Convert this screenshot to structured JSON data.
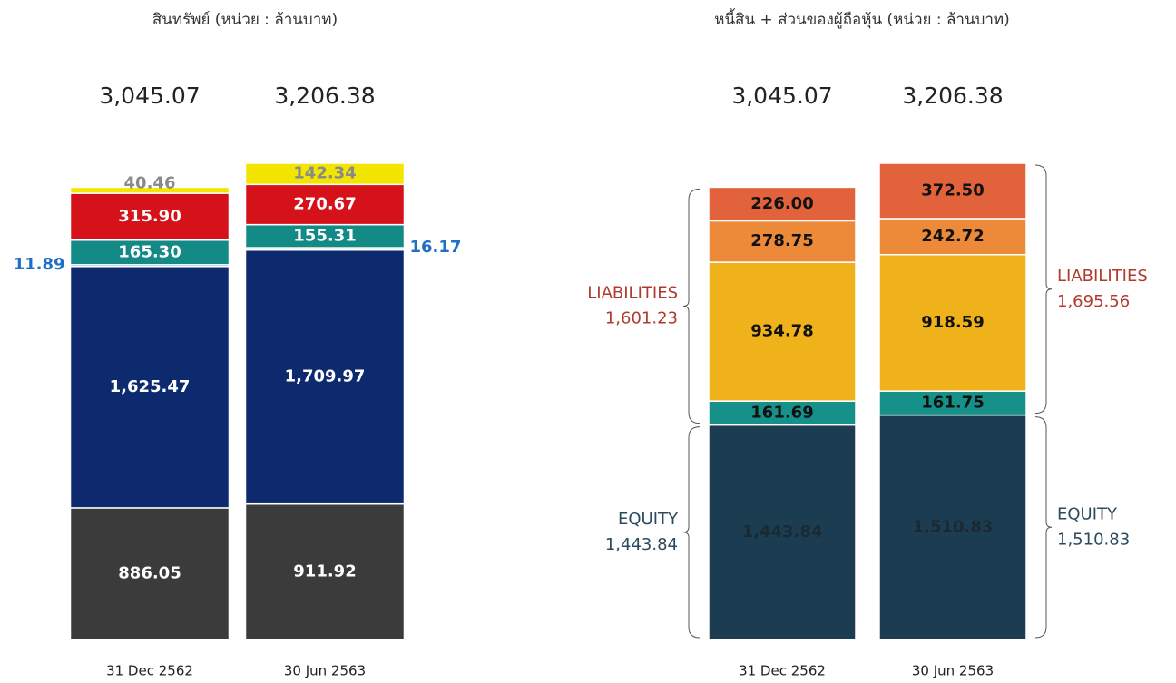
{
  "chart_data": [
    {
      "type": "stacked-bar",
      "title": "สินทรัพย์ (หน่วย : ล้านบาท)",
      "categories": [
        "31 Dec 2562",
        "30 Jun 2563"
      ],
      "totals": [
        3045.07,
        3206.38
      ],
      "total_labels": [
        "3,045.07",
        "3,206.38"
      ],
      "series": [
        {
          "color": "#3b3b3b",
          "label_color": "#ffffff",
          "values": [
            886.05,
            911.92
          ]
        },
        {
          "color": "#0e2a6f",
          "label_color": "#ffffff",
          "values": [
            1625.47,
            1709.97
          ],
          "value_labels": [
            "1,625.47",
            "1,709.97"
          ]
        },
        {
          "color": "#4a90d9",
          "label_color": "#1f6fc5",
          "values": [
            11.89,
            16.17
          ]
        },
        {
          "color": "#148a87",
          "label_color": "#ffffff",
          "values": [
            165.3,
            155.31
          ],
          "value_labels": [
            "165.30",
            "155.31"
          ]
        },
        {
          "color": "#d5121a",
          "label_color": "#ffffff",
          "values": [
            315.9,
            270.67
          ],
          "value_labels": [
            "315.90",
            "270.67"
          ]
        },
        {
          "color": "#f2e500",
          "label_color": "#8a8a8a",
          "values": [
            40.46,
            142.34
          ]
        }
      ]
    },
    {
      "type": "stacked-bar",
      "title": "หนี้สิน + ส่วนของผู้ถือหุ้น (หน่วย : ล้านบาท)",
      "categories": [
        "31 Dec 2562",
        "30 Jun 2563"
      ],
      "totals": [
        3045.07,
        3206.38
      ],
      "total_labels": [
        "3,045.07",
        "3,206.38"
      ],
      "series": [
        {
          "color": "#1c3d51",
          "label_color": "#1a2a33",
          "values": [
            1443.84,
            1510.83
          ],
          "value_labels": [
            "1,443.84",
            "1,510.83"
          ]
        },
        {
          "color": "#16918a",
          "label_color": "#111111",
          "values": [
            161.69,
            161.75
          ]
        },
        {
          "color": "#f0b21a",
          "label_color": "#111111",
          "values": [
            934.78,
            918.59
          ]
        },
        {
          "color": "#ec8a3a",
          "label_color": "#111111",
          "values": [
            278.75,
            242.72
          ]
        },
        {
          "color": "#e2623c",
          "label_color": "#111111",
          "values": [
            226.0,
            372.5
          ],
          "value_labels": [
            "226.00",
            "372.50"
          ]
        }
      ],
      "brackets": [
        [
          {
            "text": "LIABILITIES",
            "value": 1601.23,
            "label": "1,601.23",
            "color": "#b03a2e"
          },
          {
            "text": "EQUITY",
            "value": 1443.84,
            "label": "1,443.84",
            "color": "#2c4a5e"
          }
        ],
        [
          {
            "text": "LIABILITIES",
            "value": 1695.56,
            "label": "1,695.56",
            "color": "#b03a2e"
          },
          {
            "text": "EQUITY",
            "value": 1510.83,
            "label": "1,510.83",
            "color": "#2c4a5e"
          }
        ]
      ]
    }
  ]
}
